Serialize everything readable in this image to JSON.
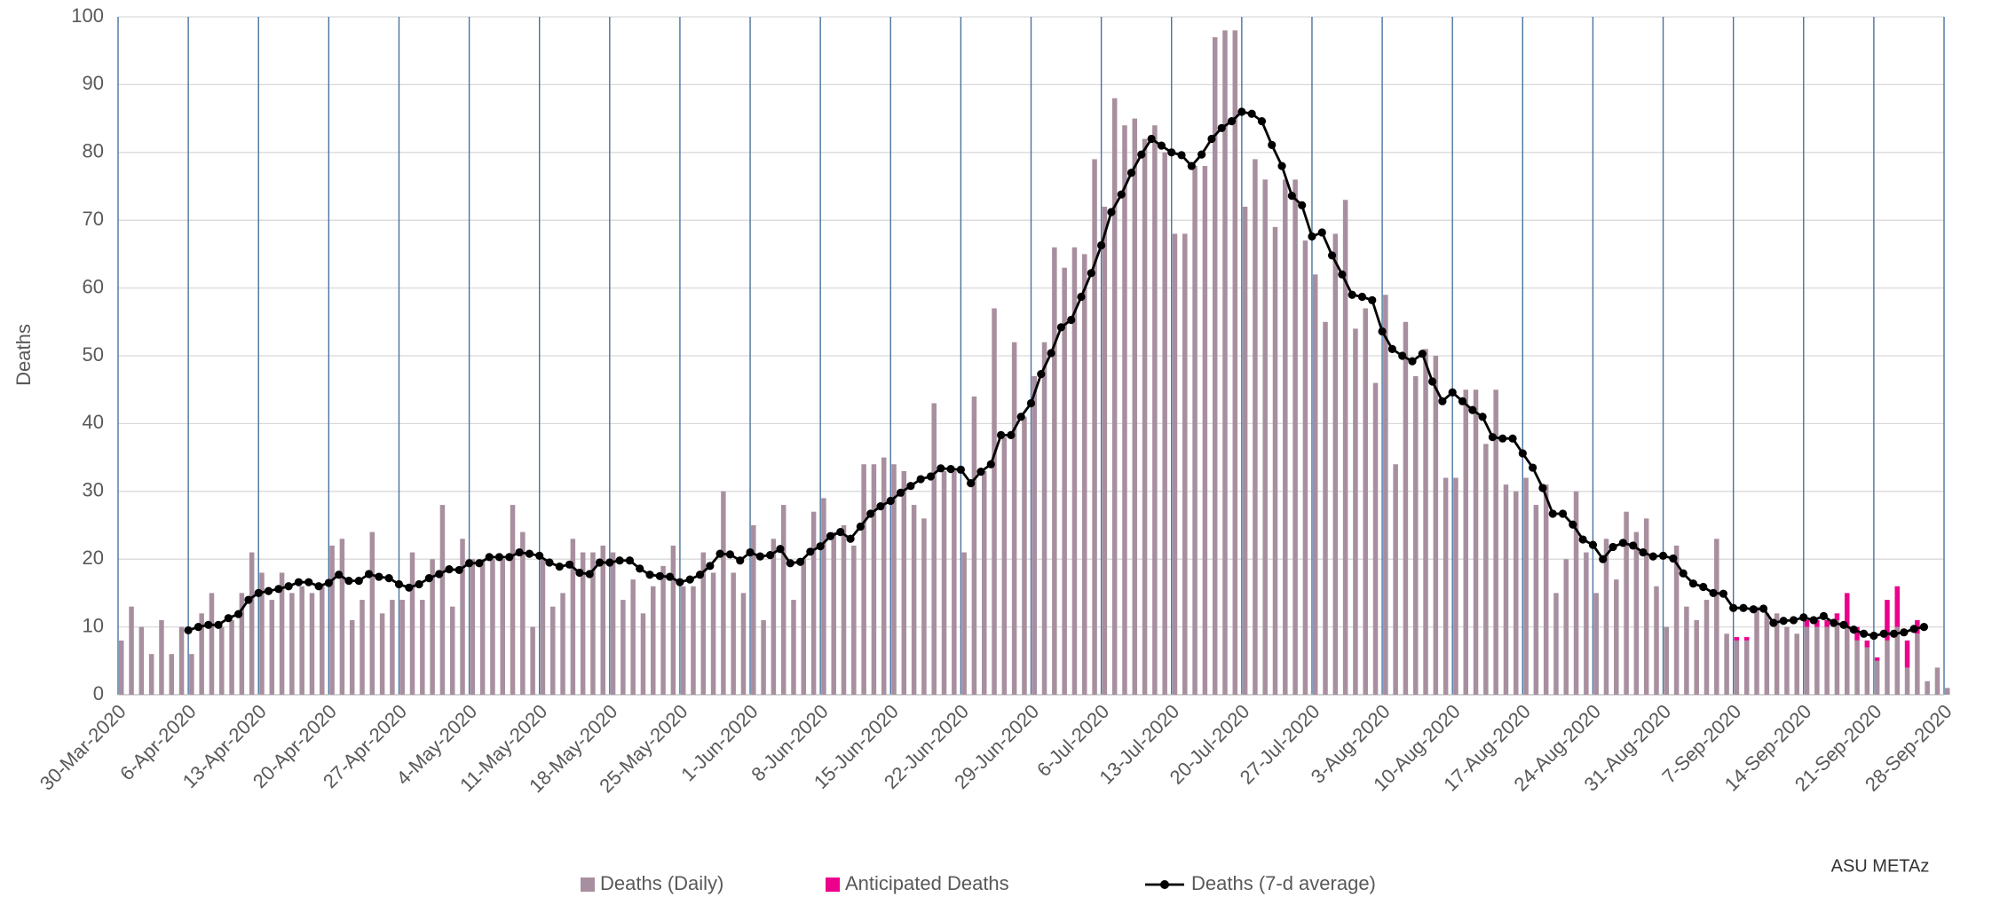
{
  "chart_data": {
    "type": "bar",
    "stacked": true,
    "ylabel": "Deaths",
    "annotation": "ASU METAz",
    "ylim": [
      0,
      100
    ],
    "yticks": [
      0,
      10,
      20,
      30,
      40,
      50,
      60,
      70,
      80,
      90,
      100
    ],
    "grid": true,
    "categories": [
      "30-Mar-2020",
      null,
      null,
      null,
      null,
      null,
      null,
      "6-Apr-2020",
      null,
      null,
      null,
      null,
      null,
      null,
      "13-Apr-2020",
      null,
      null,
      null,
      null,
      null,
      null,
      "20-Apr-2020",
      null,
      null,
      null,
      null,
      null,
      null,
      "27-Apr-2020",
      null,
      null,
      null,
      null,
      null,
      null,
      "4-May-2020",
      null,
      null,
      null,
      null,
      null,
      null,
      "11-May-2020",
      null,
      null,
      null,
      null,
      null,
      null,
      "18-May-2020",
      null,
      null,
      null,
      null,
      null,
      null,
      "25-May-2020",
      null,
      null,
      null,
      null,
      null,
      null,
      "1-Jun-2020",
      null,
      null,
      null,
      null,
      null,
      null,
      "8-Jun-2020",
      null,
      null,
      null,
      null,
      null,
      null,
      "15-Jun-2020",
      null,
      null,
      null,
      null,
      null,
      null,
      "22-Jun-2020",
      null,
      null,
      null,
      null,
      null,
      null,
      "29-Jun-2020",
      null,
      null,
      null,
      null,
      null,
      null,
      "6-Jul-2020",
      null,
      null,
      null,
      null,
      null,
      null,
      "13-Jul-2020",
      null,
      null,
      null,
      null,
      null,
      null,
      "20-Jul-2020",
      null,
      null,
      null,
      null,
      null,
      null,
      "27-Jul-2020",
      null,
      null,
      null,
      null,
      null,
      null,
      "3-Aug-2020",
      null,
      null,
      null,
      null,
      null,
      null,
      "10-Aug-2020",
      null,
      null,
      null,
      null,
      null,
      null,
      "17-Aug-2020",
      null,
      null,
      null,
      null,
      null,
      null,
      "24-Aug-2020",
      null,
      null,
      null,
      null,
      null,
      null,
      "31-Aug-2020",
      null,
      null,
      null,
      null,
      null,
      null,
      "7-Sep-2020",
      null,
      null,
      null,
      null,
      null,
      null,
      "14-Sep-2020",
      null,
      null,
      null,
      null,
      null,
      null,
      "21-Sep-2020",
      null,
      null,
      null,
      null,
      null,
      null,
      "28-Sep-2020"
    ],
    "series": [
      {
        "name": "Deaths (Daily)",
        "type": "bar",
        "color": "#a88f9f",
        "values": [
          8,
          13,
          10,
          6,
          11,
          6,
          10,
          6,
          12,
          15,
          10,
          11,
          15,
          21,
          18,
          14,
          18,
          15,
          16,
          15,
          16,
          22,
          23,
          11,
          14,
          24,
          12,
          14,
          14,
          21,
          14,
          20,
          28,
          13,
          23,
          20,
          20,
          20,
          20,
          28,
          24,
          10,
          20,
          13,
          15,
          23,
          21,
          21,
          22,
          21,
          14,
          17,
          12,
          16,
          19,
          22,
          16,
          16,
          21,
          18,
          30,
          18,
          15,
          25,
          11,
          23,
          28,
          14,
          20,
          27,
          29,
          24,
          25,
          22,
          34,
          34,
          35,
          34,
          33,
          28,
          26,
          43,
          33,
          33,
          21,
          44,
          33,
          57,
          38,
          52,
          41,
          47,
          52,
          66,
          63,
          66,
          65,
          79,
          72,
          88,
          84,
          85,
          82,
          84,
          80,
          68,
          68,
          78,
          78,
          97,
          98,
          98,
          72,
          79,
          76,
          69,
          76,
          76,
          67,
          62,
          55,
          68,
          73,
          54,
          57,
          46,
          59,
          34,
          55,
          47,
          51,
          50,
          32,
          32,
          45,
          45,
          37,
          45,
          31,
          30,
          32,
          28,
          31,
          15,
          20,
          30,
          21,
          15,
          23,
          17,
          27,
          24,
          26,
          16,
          10,
          22,
          13,
          11,
          14,
          23,
          9,
          8,
          8,
          13,
          12,
          12,
          10,
          9,
          10,
          10,
          10,
          11,
          10,
          8,
          7,
          5,
          8,
          10,
          4,
          9,
          2,
          4,
          1
        ]
      },
      {
        "name": "Anticipated Deaths",
        "type": "bar",
        "color": "#ec008c",
        "values": [
          null,
          null,
          null,
          null,
          null,
          null,
          null,
          null,
          null,
          null,
          null,
          null,
          null,
          null,
          null,
          null,
          null,
          null,
          null,
          null,
          null,
          null,
          null,
          null,
          null,
          null,
          null,
          null,
          null,
          null,
          null,
          null,
          null,
          null,
          null,
          null,
          null,
          null,
          null,
          null,
          null,
          null,
          null,
          null,
          null,
          null,
          null,
          null,
          null,
          null,
          null,
          null,
          null,
          null,
          null,
          null,
          null,
          null,
          null,
          null,
          null,
          null,
          null,
          null,
          null,
          null,
          null,
          null,
          null,
          null,
          null,
          null,
          null,
          null,
          null,
          null,
          null,
          null,
          null,
          null,
          null,
          null,
          null,
          null,
          null,
          null,
          null,
          null,
          null,
          null,
          null,
          null,
          null,
          null,
          null,
          null,
          null,
          null,
          null,
          null,
          null,
          null,
          null,
          null,
          null,
          null,
          null,
          null,
          null,
          null,
          null,
          null,
          null,
          null,
          null,
          null,
          null,
          null,
          null,
          null,
          null,
          null,
          null,
          null,
          null,
          null,
          null,
          null,
          null,
          null,
          null,
          null,
          null,
          null,
          null,
          null,
          null,
          null,
          null,
          null,
          null,
          null,
          null,
          null,
          null,
          null,
          null,
          null,
          null,
          null,
          null,
          null,
          null,
          null,
          null,
          null,
          null,
          null,
          null,
          null,
          null,
          0.5,
          0.5,
          null,
          null,
          null,
          null,
          null,
          1,
          1,
          1,
          1,
          5,
          2,
          1,
          0.5,
          6,
          6,
          4,
          2,
          null,
          null,
          null
        ]
      },
      {
        "name": "Deaths (7-d average)",
        "type": "line",
        "color": "#000000",
        "values": [
          null,
          null,
          null,
          null,
          null,
          null,
          null,
          9.5,
          10,
          10.3,
          10.3,
          11.3,
          11.9,
          14,
          15,
          15.3,
          15.6,
          16,
          16.6,
          16.6,
          16,
          16.5,
          17.7,
          16.8,
          16.8,
          17.8,
          17.4,
          17.2,
          16.3,
          15.8,
          16.3,
          17.2,
          17.8,
          18.5,
          18.4,
          19.4,
          19.4,
          20.3,
          20.3,
          20.3,
          21,
          20.8,
          20.5,
          19.5,
          18.9,
          19.2,
          18,
          17.8,
          19.5,
          19.5,
          19.8,
          19.8,
          18.6,
          17.7,
          17.5,
          17.4,
          16.6,
          17,
          17.7,
          19,
          20.8,
          20.7,
          19.8,
          21,
          20.4,
          20.6,
          21.5,
          19.4,
          19.6,
          21.1,
          21.9,
          23.4,
          24,
          23,
          24.8,
          26.7,
          27.8,
          28.6,
          29.8,
          30.8,
          31.8,
          32.2,
          33.4,
          33.3,
          33.2,
          31.2,
          32.9,
          34,
          38.3,
          38.3,
          41,
          43,
          47.3,
          50.4,
          54.2,
          55.3,
          58.7,
          62.2,
          66.3,
          71.2,
          73.8,
          77,
          79.7,
          82,
          81,
          80,
          79.6,
          78,
          79.7,
          82,
          83.6,
          84.6,
          86,
          85.7,
          84.6,
          81.1,
          78,
          73.6,
          72.2,
          67.6,
          68.2,
          64.8,
          62,
          59,
          58.7,
          58.2,
          53.6,
          51,
          50,
          49.2,
          50.3,
          46.2,
          43.3,
          44.6,
          43.3,
          42,
          41,
          38,
          37.8,
          37.8,
          35.6,
          33.5,
          30.5,
          26.7,
          26.7,
          25.1,
          22.9,
          22.1,
          20,
          21.8,
          22.4,
          22,
          21,
          20.4,
          20.5,
          20.1,
          17.9,
          16.4,
          15.9,
          15,
          14.9,
          12.8,
          12.8,
          12.6,
          12.7,
          10.6,
          10.9,
          11,
          11.4,
          11,
          11.6,
          10.6,
          10.3,
          9.6,
          9,
          8.7,
          9,
          9,
          9.2,
          9.7,
          10,
          null,
          null
        ]
      }
    ]
  }
}
